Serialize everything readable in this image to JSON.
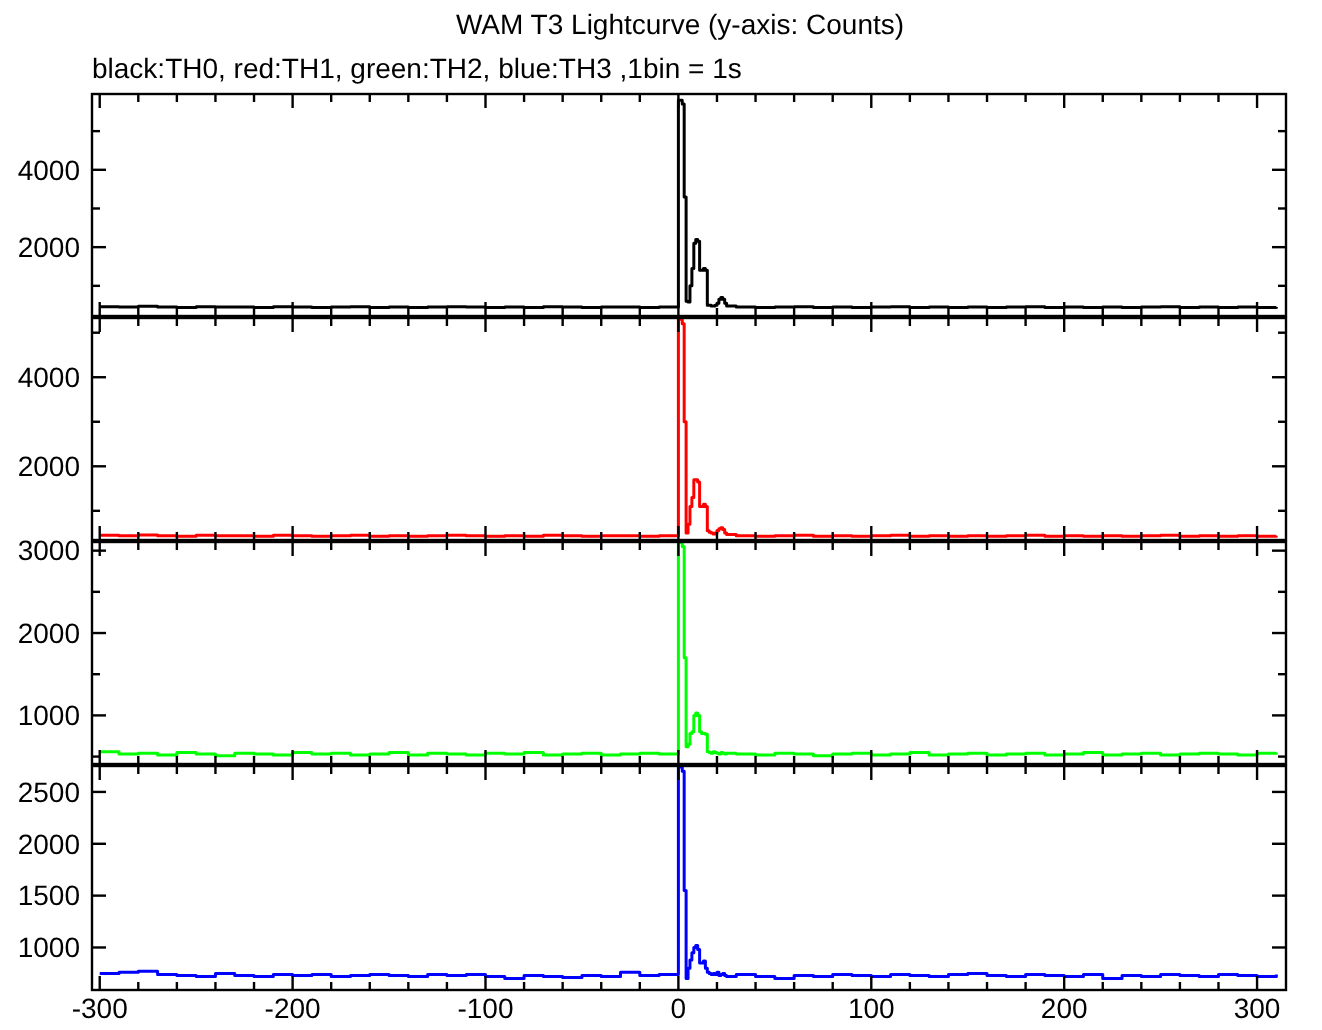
{
  "chart_data": [
    {
      "type": "step",
      "title": "WAM T3 Lightcurve (y-axis: Counts)",
      "subtitle": "black:TH0, red:TH1, green:TH2, blue:TH3 ,1bin = 1s",
      "tick_labels": "y",
      "x": [
        -300,
        -290,
        -280,
        -270,
        -260,
        -250,
        -240,
        -230,
        -220,
        -210,
        -200,
        -190,
        -180,
        -170,
        -160,
        -150,
        -140,
        -130,
        -120,
        -110,
        -100,
        -90,
        -80,
        -70,
        -60,
        -50,
        -40,
        -30,
        -20,
        -10,
        0,
        1,
        2,
        3,
        4,
        5,
        6,
        7,
        8,
        9,
        10,
        11,
        12,
        13,
        14,
        15,
        16,
        17,
        18,
        19,
        20,
        21,
        22,
        23,
        24,
        25,
        30,
        40,
        50,
        60,
        70,
        80,
        90,
        100,
        110,
        120,
        130,
        140,
        150,
        160,
        170,
        180,
        190,
        200,
        210,
        220,
        230,
        240,
        250,
        260,
        270,
        280,
        290,
        300,
        310
      ],
      "xlim": [
        -304,
        315
      ],
      "xticks": [
        -300,
        {
          "value": -280,
          "label": null
        },
        {
          "value": -260,
          "label": null
        },
        {
          "value": -240,
          "label": null
        },
        {
          "value": -220,
          "label": null
        },
        -200,
        {
          "value": -180,
          "label": null
        },
        {
          "value": -160,
          "label": null
        },
        {
          "value": -140,
          "label": null
        },
        {
          "value": -120,
          "label": null
        },
        -100,
        {
          "value": -80,
          "label": null
        },
        {
          "value": -60,
          "label": null
        },
        {
          "value": -40,
          "label": null
        },
        {
          "value": -20,
          "label": null
        },
        0,
        {
          "value": 20,
          "label": null
        },
        {
          "value": 40,
          "label": null
        },
        {
          "value": 60,
          "label": null
        },
        {
          "value": 80,
          "label": null
        },
        100,
        {
          "value": 120,
          "label": null
        },
        {
          "value": 140,
          "label": null
        },
        {
          "value": 160,
          "label": null
        },
        {
          "value": 180,
          "label": null
        },
        200,
        {
          "value": 220,
          "label": null
        },
        {
          "value": 240,
          "label": null
        },
        {
          "value": 260,
          "label": null
        },
        {
          "value": 280,
          "label": null
        },
        300
      ],
      "ylim": [
        220,
        5960
      ],
      "yticks": [
        {
          "value": 1000,
          "label": null
        },
        2000,
        {
          "value": 3000,
          "label": null
        },
        4000,
        {
          "value": 5000,
          "label": null
        }
      ],
      "series": [
        {
          "color": "#000000",
          "values": [
            460,
            450,
            470,
            450,
            440,
            460,
            450,
            450,
            440,
            460,
            450,
            440,
            450,
            460,
            440,
            450,
            440,
            450,
            460,
            450,
            440,
            450,
            440,
            460,
            450,
            440,
            450,
            450,
            440,
            450,
            5800,
            5800,
            5700,
            3300,
            600,
            580,
            1000,
            1450,
            2100,
            2200,
            2150,
            1400,
            1400,
            1450,
            1400,
            500,
            500,
            480,
            480,
            500,
            550,
            650,
            700,
            650,
            550,
            480,
            450,
            440,
            450,
            460,
            440,
            450,
            440,
            450,
            460,
            440,
            450,
            440,
            450,
            440,
            450,
            460,
            440,
            450,
            440,
            450,
            440,
            450,
            460,
            440,
            450,
            440,
            450,
            440,
            450
          ]
        }
      ]
    },
    {
      "type": "step",
      "tick_labels": "y",
      "x": [
        -300,
        -290,
        -280,
        -270,
        -260,
        -250,
        -240,
        -230,
        -220,
        -210,
        -200,
        -190,
        -180,
        -170,
        -160,
        -150,
        -140,
        -130,
        -120,
        -110,
        -100,
        -90,
        -80,
        -70,
        -60,
        -50,
        -40,
        -30,
        -20,
        -10,
        0,
        1,
        2,
        3,
        4,
        5,
        6,
        7,
        8,
        9,
        10,
        11,
        12,
        13,
        14,
        15,
        16,
        17,
        18,
        19,
        20,
        21,
        22,
        23,
        24,
        25,
        30,
        40,
        50,
        60,
        70,
        80,
        90,
        100,
        110,
        120,
        130,
        140,
        150,
        160,
        170,
        180,
        190,
        200,
        210,
        220,
        230,
        240,
        250,
        260,
        270,
        280,
        290,
        300,
        310
      ],
      "xlim": [
        -304,
        315
      ],
      "xticks": [
        -300,
        {
          "value": -280,
          "label": null
        },
        {
          "value": -260,
          "label": null
        },
        {
          "value": -240,
          "label": null
        },
        {
          "value": -220,
          "label": null
        },
        -200,
        {
          "value": -180,
          "label": null
        },
        {
          "value": -160,
          "label": null
        },
        {
          "value": -140,
          "label": null
        },
        {
          "value": -120,
          "label": null
        },
        -100,
        {
          "value": -80,
          "label": null
        },
        {
          "value": -60,
          "label": null
        },
        {
          "value": -40,
          "label": null
        },
        {
          "value": -20,
          "label": null
        },
        0,
        {
          "value": 20,
          "label": null
        },
        {
          "value": 40,
          "label": null
        },
        {
          "value": 60,
          "label": null
        },
        {
          "value": 80,
          "label": null
        },
        100,
        {
          "value": 120,
          "label": null
        },
        {
          "value": 140,
          "label": null
        },
        {
          "value": 160,
          "label": null
        },
        {
          "value": 180,
          "label": null
        },
        200,
        {
          "value": 220,
          "label": null
        },
        {
          "value": 240,
          "label": null
        },
        {
          "value": 260,
          "label": null
        },
        {
          "value": 280,
          "label": null
        },
        300
      ],
      "ylim": [
        345,
        5330
      ],
      "yticks": [
        {
          "value": 1000,
          "label": null
        },
        2000,
        {
          "value": 3000,
          "label": null
        },
        4000,
        {
          "value": 5000,
          "label": null
        }
      ],
      "series": [
        {
          "color": "#ff0000",
          "values": [
            450,
            440,
            460,
            440,
            430,
            450,
            440,
            440,
            430,
            450,
            440,
            430,
            440,
            450,
            430,
            440,
            430,
            440,
            450,
            440,
            430,
            440,
            430,
            450,
            440,
            430,
            440,
            440,
            430,
            440,
            5300,
            5300,
            5200,
            3000,
            500,
            700,
            1100,
            1300,
            1700,
            1700,
            1650,
            1100,
            1100,
            1150,
            1100,
            550,
            520,
            500,
            480,
            500,
            560,
            600,
            620,
            580,
            500,
            470,
            440,
            430,
            440,
            450,
            430,
            440,
            430,
            440,
            450,
            430,
            440,
            430,
            440,
            430,
            440,
            450,
            430,
            440,
            430,
            440,
            430,
            440,
            450,
            430,
            440,
            430,
            440,
            430,
            440
          ]
        }
      ]
    },
    {
      "type": "step",
      "tick_labels": "y",
      "x": [
        -300,
        -290,
        -280,
        -270,
        -260,
        -250,
        -240,
        -230,
        -220,
        -210,
        -200,
        -190,
        -180,
        -170,
        -160,
        -150,
        -140,
        -130,
        -120,
        -110,
        -100,
        -90,
        -80,
        -70,
        -60,
        -50,
        -40,
        -30,
        -20,
        -10,
        0,
        1,
        2,
        3,
        4,
        5,
        6,
        7,
        8,
        9,
        10,
        11,
        12,
        13,
        14,
        15,
        16,
        17,
        18,
        19,
        20,
        21,
        22,
        23,
        24,
        25,
        30,
        40,
        50,
        60,
        70,
        80,
        90,
        100,
        110,
        120,
        130,
        140,
        150,
        160,
        170,
        180,
        190,
        200,
        210,
        220,
        230,
        240,
        250,
        260,
        270,
        280,
        290,
        300,
        310
      ],
      "xlim": [
        -304,
        315
      ],
      "xticks": [
        -300,
        {
          "value": -280,
          "label": null
        },
        {
          "value": -260,
          "label": null
        },
        {
          "value": -240,
          "label": null
        },
        {
          "value": -220,
          "label": null
        },
        -200,
        {
          "value": -180,
          "label": null
        },
        {
          "value": -160,
          "label": null
        },
        {
          "value": -140,
          "label": null
        },
        {
          "value": -120,
          "label": null
        },
        -100,
        {
          "value": -80,
          "label": null
        },
        {
          "value": -60,
          "label": null
        },
        {
          "value": -40,
          "label": null
        },
        {
          "value": -20,
          "label": null
        },
        0,
        {
          "value": 20,
          "label": null
        },
        {
          "value": 40,
          "label": null
        },
        {
          "value": 60,
          "label": null
        },
        {
          "value": 80,
          "label": null
        },
        100,
        {
          "value": 120,
          "label": null
        },
        {
          "value": 140,
          "label": null
        },
        {
          "value": 160,
          "label": null
        },
        {
          "value": 180,
          "label": null
        },
        200,
        {
          "value": 220,
          "label": null
        },
        {
          "value": 240,
          "label": null
        },
        {
          "value": 260,
          "label": null
        },
        {
          "value": 280,
          "label": null
        },
        300
      ],
      "ylim": [
        410,
        3105
      ],
      "yticks": [
        {
          "value": 500,
          "label": null
        },
        1000,
        {
          "value": 1500,
          "label": null
        },
        2000,
        {
          "value": 2500,
          "label": null
        },
        3000
      ],
      "series": [
        {
          "color": "#00ff00",
          "values": [
            560,
            530,
            540,
            520,
            550,
            530,
            510,
            540,
            530,
            520,
            550,
            530,
            540,
            520,
            530,
            550,
            520,
            540,
            530,
            520,
            540,
            530,
            550,
            520,
            530,
            540,
            520,
            530,
            540,
            530,
            3100,
            3100,
            3050,
            1700,
            620,
            650,
            780,
            800,
            1000,
            1030,
            1000,
            800,
            780,
            780,
            770,
            560,
            550,
            540,
            560,
            550,
            540,
            530,
            550,
            540,
            530,
            540,
            530,
            520,
            540,
            530,
            510,
            530,
            540,
            520,
            530,
            550,
            520,
            530,
            540,
            520,
            530,
            540,
            520,
            530,
            550,
            520,
            530,
            540,
            520,
            530,
            540,
            530,
            520,
            540,
            550
          ]
        }
      ]
    },
    {
      "type": "step",
      "x": [
        -300,
        -290,
        -280,
        -270,
        -260,
        -250,
        -240,
        -230,
        -220,
        -210,
        -200,
        -190,
        -180,
        -170,
        -160,
        -150,
        -140,
        -130,
        -120,
        -110,
        -100,
        -90,
        -80,
        -70,
        -60,
        -50,
        -40,
        -30,
        -20,
        -10,
        0,
        1,
        2,
        3,
        4,
        5,
        6,
        7,
        8,
        9,
        10,
        11,
        12,
        13,
        14,
        15,
        16,
        17,
        18,
        19,
        20,
        21,
        22,
        23,
        24,
        25,
        30,
        40,
        50,
        60,
        70,
        80,
        90,
        100,
        110,
        120,
        130,
        140,
        150,
        160,
        170,
        180,
        190,
        200,
        210,
        220,
        230,
        240,
        250,
        260,
        270,
        280,
        290,
        300,
        310
      ],
      "xlim": [
        -304,
        315
      ],
      "xticks": [
        -300,
        {
          "value": -280,
          "label": null
        },
        {
          "value": -260,
          "label": null
        },
        {
          "value": -240,
          "label": null
        },
        {
          "value": -220,
          "label": null
        },
        -200,
        {
          "value": -180,
          "label": null
        },
        {
          "value": -160,
          "label": null
        },
        {
          "value": -140,
          "label": null
        },
        {
          "value": -120,
          "label": null
        },
        -100,
        {
          "value": -80,
          "label": null
        },
        {
          "value": -60,
          "label": null
        },
        {
          "value": -40,
          "label": null
        },
        {
          "value": -20,
          "label": null
        },
        0,
        {
          "value": 20,
          "label": null
        },
        {
          "value": 40,
          "label": null
        },
        {
          "value": 60,
          "label": null
        },
        {
          "value": 80,
          "label": null
        },
        100,
        {
          "value": 120,
          "label": null
        },
        {
          "value": 140,
          "label": null
        },
        {
          "value": 160,
          "label": null
        },
        {
          "value": 180,
          "label": null
        },
        200,
        {
          "value": 220,
          "label": null
        },
        {
          "value": 240,
          "label": null
        },
        {
          "value": 260,
          "label": null
        },
        {
          "value": 280,
          "label": null
        },
        300
      ],
      "ylim": [
        590,
        2750
      ],
      "yticks": [
        1000,
        1500,
        2000,
        2500
      ],
      "series": [
        {
          "color": "#0000ff",
          "values": [
            750,
            760,
            770,
            740,
            730,
            720,
            750,
            730,
            720,
            740,
            730,
            740,
            720,
            730,
            740,
            730,
            720,
            740,
            730,
            740,
            720,
            700,
            730,
            720,
            710,
            730,
            720,
            760,
            730,
            740,
            2740,
            2740,
            2700,
            1550,
            700,
            800,
            880,
            950,
            1000,
            1020,
            980,
            850,
            850,
            870,
            800,
            760,
            750,
            740,
            750,
            740,
            760,
            730,
            740,
            750,
            730,
            720,
            740,
            720,
            700,
            730,
            720,
            740,
            730,
            720,
            740,
            730,
            720,
            740,
            750,
            730,
            720,
            740,
            730,
            720,
            740,
            700,
            730,
            720,
            740,
            730,
            720,
            740,
            730,
            720,
            740
          ]
        }
      ]
    }
  ]
}
